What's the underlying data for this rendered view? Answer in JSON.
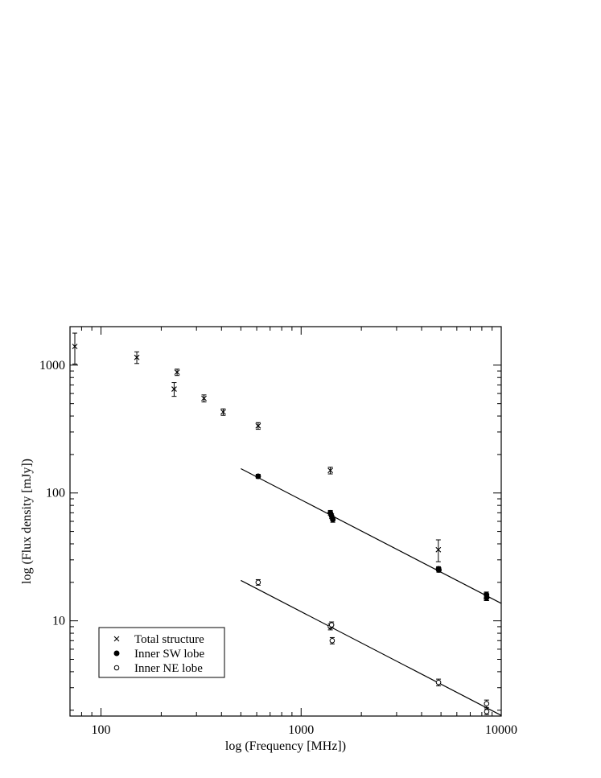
{
  "chart_data": {
    "type": "scatter",
    "xlabel": "log (Frequency [MHz])",
    "ylabel": "log (Flux density [mJy])",
    "x_scale": "log",
    "y_scale": "log",
    "xlim": [
      70,
      10000
    ],
    "ylim": [
      1.8,
      2000
    ],
    "x_ticks": [
      100,
      1000,
      10000
    ],
    "y_ticks": [
      10,
      100,
      1000
    ],
    "grid": false,
    "legend_position": "bottom-left",
    "series": [
      {
        "name": "Total structure",
        "marker": "cross",
        "points": [
          {
            "x": 74,
            "y": 1400,
            "err": 380
          },
          {
            "x": 151,
            "y": 1150,
            "err": 120
          },
          {
            "x": 232,
            "y": 650,
            "err": 80
          },
          {
            "x": 240,
            "y": 880,
            "err": 50
          },
          {
            "x": 327,
            "y": 550,
            "err": 35
          },
          {
            "x": 408,
            "y": 430,
            "err": 25
          },
          {
            "x": 610,
            "y": 335,
            "err": 20
          },
          {
            "x": 1400,
            "y": 150,
            "err": 9
          },
          {
            "x": 4850,
            "y": 36,
            "err": 7
          },
          {
            "x": 8400,
            "y": 15.5,
            "err": 1
          }
        ]
      },
      {
        "name": "Inner SW lobe",
        "marker": "filled-circle",
        "points": [
          {
            "x": 610,
            "y": 135,
            "err": 5
          },
          {
            "x": 1400,
            "y": 70,
            "err": 3
          },
          {
            "x": 1420,
            "y": 66,
            "err": 3
          },
          {
            "x": 1440,
            "y": 62,
            "err": 3
          },
          {
            "x": 4860,
            "y": 25.5,
            "err": 1
          },
          {
            "x": 4880,
            "y": 25,
            "err": 1
          },
          {
            "x": 8440,
            "y": 16,
            "err": 0.8
          },
          {
            "x": 8460,
            "y": 15.2,
            "err": 0.8
          }
        ]
      },
      {
        "name": "Inner NE lobe",
        "marker": "open-circle",
        "points": [
          {
            "x": 610,
            "y": 20,
            "err": 1
          },
          {
            "x": 1400,
            "y": 9,
            "err": 0.5
          },
          {
            "x": 1420,
            "y": 9.3,
            "err": 0.5
          },
          {
            "x": 1430,
            "y": 7,
            "err": 0.4
          },
          {
            "x": 4860,
            "y": 3.3,
            "err": 0.2
          },
          {
            "x": 8450,
            "y": 2.25,
            "err": 0.15
          },
          {
            "x": 8460,
            "y": 1.95,
            "err": 0.1
          }
        ]
      }
    ],
    "fit_lines": [
      {
        "x": [
          500,
          10000
        ],
        "y": [
          155,
          13.7
        ]
      },
      {
        "x": [
          500,
          10000
        ],
        "y": [
          20.7,
          1.82
        ]
      }
    ]
  }
}
